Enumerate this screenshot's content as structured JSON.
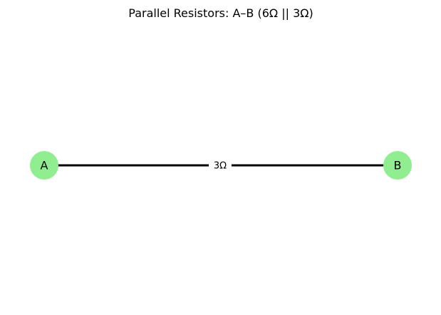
{
  "title": "Parallel Resistors: A–B (6Ω || 3Ω)",
  "nodes": [
    {
      "id": "A",
      "label": "A"
    },
    {
      "id": "B",
      "label": "B"
    }
  ],
  "edge": {
    "from": "A",
    "to": "B",
    "label": "3Ω"
  },
  "colors": {
    "node_fill": "#90ee90",
    "edge_stroke": "#000000",
    "background": "#ffffff"
  }
}
